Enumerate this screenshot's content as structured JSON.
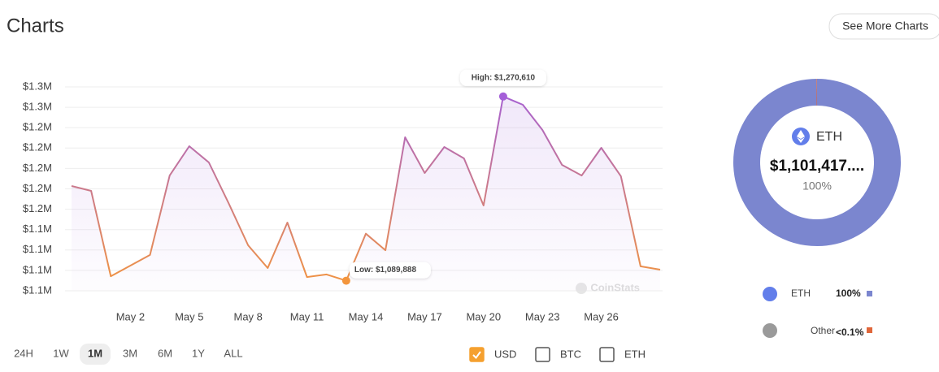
{
  "header": {
    "title": "Charts",
    "button": "See More Charts"
  },
  "chart_data": [
    {
      "type": "line",
      "categories": [
        null,
        null,
        null,
        "May 2",
        null,
        null,
        "May 5",
        null,
        null,
        "May 8",
        null,
        null,
        "May 11",
        null,
        null,
        "May 14",
        null,
        null,
        "May 17",
        null,
        null,
        "May 20",
        null,
        null,
        "May 23",
        null,
        null,
        "May 26",
        null,
        null,
        null
      ],
      "values": [
        1182800,
        1178000,
        1094300,
        1104700,
        1115100,
        1193100,
        1221800,
        1205900,
        1166100,
        1124600,
        1102300,
        1146900,
        1093500,
        1096000,
        1089888,
        1136000,
        1119800,
        1230600,
        1195500,
        1221000,
        1209900,
        1163700,
        1270610,
        1262500,
        1237800,
        1203500,
        1193100,
        1220200,
        1192400,
        1104000,
        1100700
      ],
      "colors": [
        "#a45fd8",
        "#f3953d"
      ],
      "ylim": [
        1080000,
        1280000
      ],
      "yticks": [
        {
          "value": 1080000,
          "label": "$1.1M"
        },
        {
          "value": 1100000,
          "label": "$1.1M"
        },
        {
          "value": 1120000,
          "label": "$1.1M"
        },
        {
          "value": 1140000,
          "label": "$1.1M"
        },
        {
          "value": 1160000,
          "label": "$1.2M"
        },
        {
          "value": 1180000,
          "label": "$1.2M"
        },
        {
          "value": 1200000,
          "label": "$1.2M"
        },
        {
          "value": 1220000,
          "label": "$1.2M"
        },
        {
          "value": 1240000,
          "label": "$1.2M"
        },
        {
          "value": 1260000,
          "label": "$1.3M"
        },
        {
          "value": 1280000,
          "label": "$1.3M"
        }
      ],
      "grid": true,
      "high_label": "High: $1,270,610",
      "low_label": "Low: $1,089,888",
      "watermark": "CoinStats"
    },
    {
      "type": "pie",
      "categories": [
        "ETH",
        "Other"
      ],
      "values": [
        100,
        0.1
      ],
      "value_labels": [
        "100%",
        "<0.1%"
      ],
      "colors": [
        "#7b86cf",
        "#e0663a"
      ],
      "center_value": "$1,101,417...."
    }
  ],
  "controls": {
    "ranges": [
      {
        "label": "24H",
        "selected": false
      },
      {
        "label": "1W",
        "selected": false
      },
      {
        "label": "1M",
        "selected": true
      },
      {
        "label": "3M",
        "selected": false
      },
      {
        "label": "6M",
        "selected": false
      },
      {
        "label": "1Y",
        "selected": false
      },
      {
        "label": "ALL",
        "selected": false
      }
    ],
    "currencies": [
      {
        "label": "USD",
        "checked": true
      },
      {
        "label": "BTC",
        "checked": false
      },
      {
        "label": "ETH",
        "checked": false
      }
    ]
  }
}
